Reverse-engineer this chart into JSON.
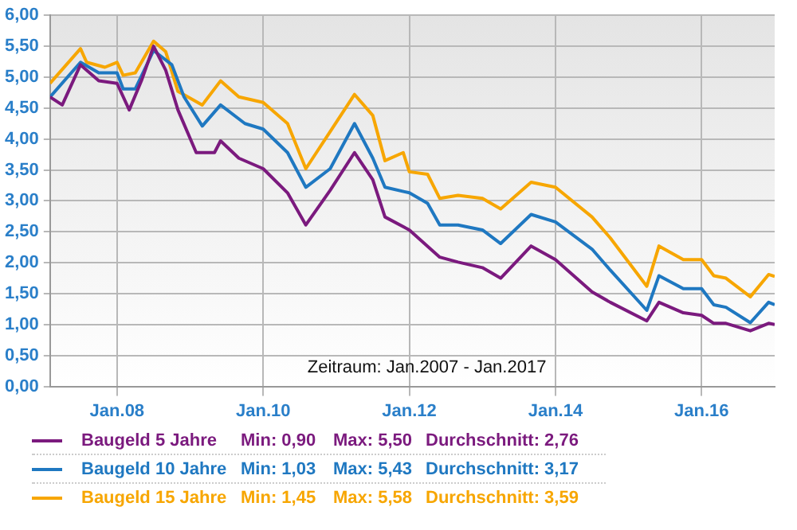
{
  "chart_data": {
    "type": "line",
    "xlim": [
      "2007-02",
      "2017-01"
    ],
    "ylim": [
      0,
      6
    ],
    "xticks": [
      {
        "value": "2008-01",
        "label": "Jan.08"
      },
      {
        "value": "2010-01",
        "label": "Jan.10"
      },
      {
        "value": "2012-01",
        "label": "Jan.12"
      },
      {
        "value": "2014-01",
        "label": "Jan.14"
      },
      {
        "value": "2016-01",
        "label": "Jan.16"
      }
    ],
    "yticks": [
      {
        "value": 0,
        "label": "0,00"
      },
      {
        "value": 0.5,
        "label": "0,50"
      },
      {
        "value": 1,
        "label": "1,00"
      },
      {
        "value": 1.5,
        "label": "1,50"
      },
      {
        "value": 2,
        "label": "2,00"
      },
      {
        "value": 2.5,
        "label": "2,50"
      },
      {
        "value": 3,
        "label": "3,00"
      },
      {
        "value": 3.5,
        "label": "3,50"
      },
      {
        "value": 4,
        "label": "4,00"
      },
      {
        "value": 4.5,
        "label": "4,50"
      },
      {
        "value": 5,
        "label": "5,00"
      },
      {
        "value": 5.5,
        "label": "5,50"
      },
      {
        "value": 6,
        "label": "6,00"
      }
    ],
    "grid": true,
    "legend": "bottom",
    "marker": "none",
    "line_style": "solid",
    "annotations": [
      "Zeitraum: Jan.2007 - Jan.2017",
      "Min: 0,90",
      "Max: 5,50",
      "Durchschnitt: 2,76",
      "Min: 1,03",
      "Max: 5,43",
      "Durchschnitt: 3,17",
      "Min: 1,45",
      "Max: 5,58",
      "Durchschnitt: 3,59"
    ],
    "series": [
      {
        "name": "Baugeld 5 Jahre",
        "color": "#7b1a7e",
        "x": [
          "2007-02",
          "2007-04",
          "2007-07",
          "2007-10",
          "2008-01",
          "2008-03",
          "2008-05",
          "2008-07",
          "2008-09",
          "2008-11",
          "2009-02",
          "2009-05",
          "2009-06",
          "2009-09",
          "2010-01",
          "2010-05",
          "2010-08",
          "2010-12",
          "2011-04",
          "2011-07",
          "2011-09",
          "2012-01",
          "2012-06",
          "2012-09",
          "2013-01",
          "2013-04",
          "2013-09",
          "2014-01",
          "2014-07",
          "2014-10",
          "2015-04",
          "2015-06",
          "2015-10",
          "2016-01",
          "2016-03",
          "2016-05",
          "2016-09",
          "2016-12",
          "2017-01"
        ],
        "values": [
          4.68,
          4.55,
          5.2,
          4.94,
          4.9,
          4.47,
          4.94,
          5.5,
          5.11,
          4.47,
          3.78,
          3.78,
          3.97,
          3.69,
          3.52,
          3.13,
          2.61,
          3.17,
          3.78,
          3.34,
          2.74,
          2.53,
          2.09,
          2.01,
          1.92,
          1.75,
          2.27,
          2.05,
          1.53,
          1.36,
          1.06,
          1.36,
          1.19,
          1.15,
          1.02,
          1.02,
          0.9,
          1.02,
          1.0
        ]
      },
      {
        "name": "Baugeld 10 Jahre",
        "color": "#1f78c1",
        "x": [
          "2007-02",
          "2007-07",
          "2007-10",
          "2008-01",
          "2008-02",
          "2008-04",
          "2008-07",
          "2008-10",
          "2008-12",
          "2009-03",
          "2009-06",
          "2009-10",
          "2010-01",
          "2010-05",
          "2010-08",
          "2010-12",
          "2011-04",
          "2011-07",
          "2011-09",
          "2012-01",
          "2012-04",
          "2012-06",
          "2012-09",
          "2013-01",
          "2013-04",
          "2013-09",
          "2014-01",
          "2014-07",
          "2014-10",
          "2015-04",
          "2015-06",
          "2015-10",
          "2016-01",
          "2016-03",
          "2016-05",
          "2016-09",
          "2016-12",
          "2017-01"
        ],
        "values": [
          4.68,
          5.24,
          5.07,
          5.07,
          4.81,
          4.81,
          5.43,
          5.2,
          4.68,
          4.21,
          4.55,
          4.25,
          4.16,
          3.78,
          3.22,
          3.52,
          4.25,
          3.69,
          3.22,
          3.13,
          2.96,
          2.61,
          2.61,
          2.53,
          2.31,
          2.78,
          2.66,
          2.22,
          1.88,
          1.23,
          1.79,
          1.58,
          1.58,
          1.32,
          1.28,
          1.03,
          1.36,
          1.32
        ]
      },
      {
        "name": "Baugeld 15 Jahre",
        "color": "#f7a600",
        "x": [
          "2007-02",
          "2007-07",
          "2007-08",
          "2007-11",
          "2008-01",
          "2008-02",
          "2008-04",
          "2008-07",
          "2008-09",
          "2008-11",
          "2009-03",
          "2009-06",
          "2009-09",
          "2010-01",
          "2010-05",
          "2010-08",
          "2010-12",
          "2011-04",
          "2011-07",
          "2011-09",
          "2011-12",
          "2012-01",
          "2012-04",
          "2012-06",
          "2012-09",
          "2013-01",
          "2013-04",
          "2013-09",
          "2014-01",
          "2014-07",
          "2014-10",
          "2015-04",
          "2015-06",
          "2015-10",
          "2016-01",
          "2016-03",
          "2016-05",
          "2016-09",
          "2016-12",
          "2017-01"
        ],
        "values": [
          4.9,
          5.46,
          5.24,
          5.16,
          5.24,
          5.03,
          5.07,
          5.58,
          5.41,
          4.77,
          4.55,
          4.94,
          4.68,
          4.59,
          4.25,
          3.52,
          4.12,
          4.72,
          4.38,
          3.65,
          3.78,
          3.47,
          3.43,
          3.04,
          3.09,
          3.04,
          2.87,
          3.3,
          3.22,
          2.74,
          2.4,
          1.62,
          2.27,
          2.05,
          2.05,
          1.79,
          1.75,
          1.45,
          1.81,
          1.78
        ]
      }
    ]
  }
}
